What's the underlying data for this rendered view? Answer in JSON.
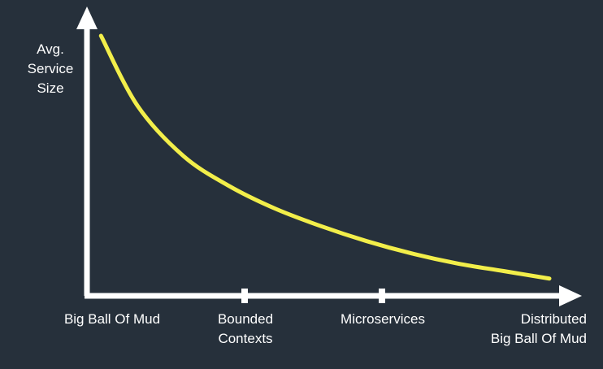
{
  "chart_data": {
    "type": "line",
    "ylabel_lines": [
      "Avg.",
      "Service",
      "Size"
    ],
    "x_categories": [
      {
        "lines": [
          "Big Ball Of Mud"
        ]
      },
      {
        "lines": [
          "Bounded",
          "Contexts"
        ]
      },
      {
        "lines": [
          "Microservices"
        ]
      },
      {
        "lines": [
          "Distributed",
          "Big Ball Of Mud"
        ]
      }
    ],
    "series": [
      {
        "color": "#f2ee4a",
        "shape": "decreasing-curve",
        "x": [
          0.02,
          0.1,
          0.2,
          0.3,
          0.4,
          0.5,
          0.6,
          0.7,
          0.8,
          0.9,
          1.0
        ],
        "y": [
          1.0,
          0.72,
          0.52,
          0.4,
          0.31,
          0.24,
          0.18,
          0.13,
          0.09,
          0.06,
          0.03
        ]
      }
    ],
    "colors": {
      "background": "#26303b",
      "axis": "#ffffff",
      "curve": "#f2ee4a",
      "text": "#ffffff"
    }
  }
}
